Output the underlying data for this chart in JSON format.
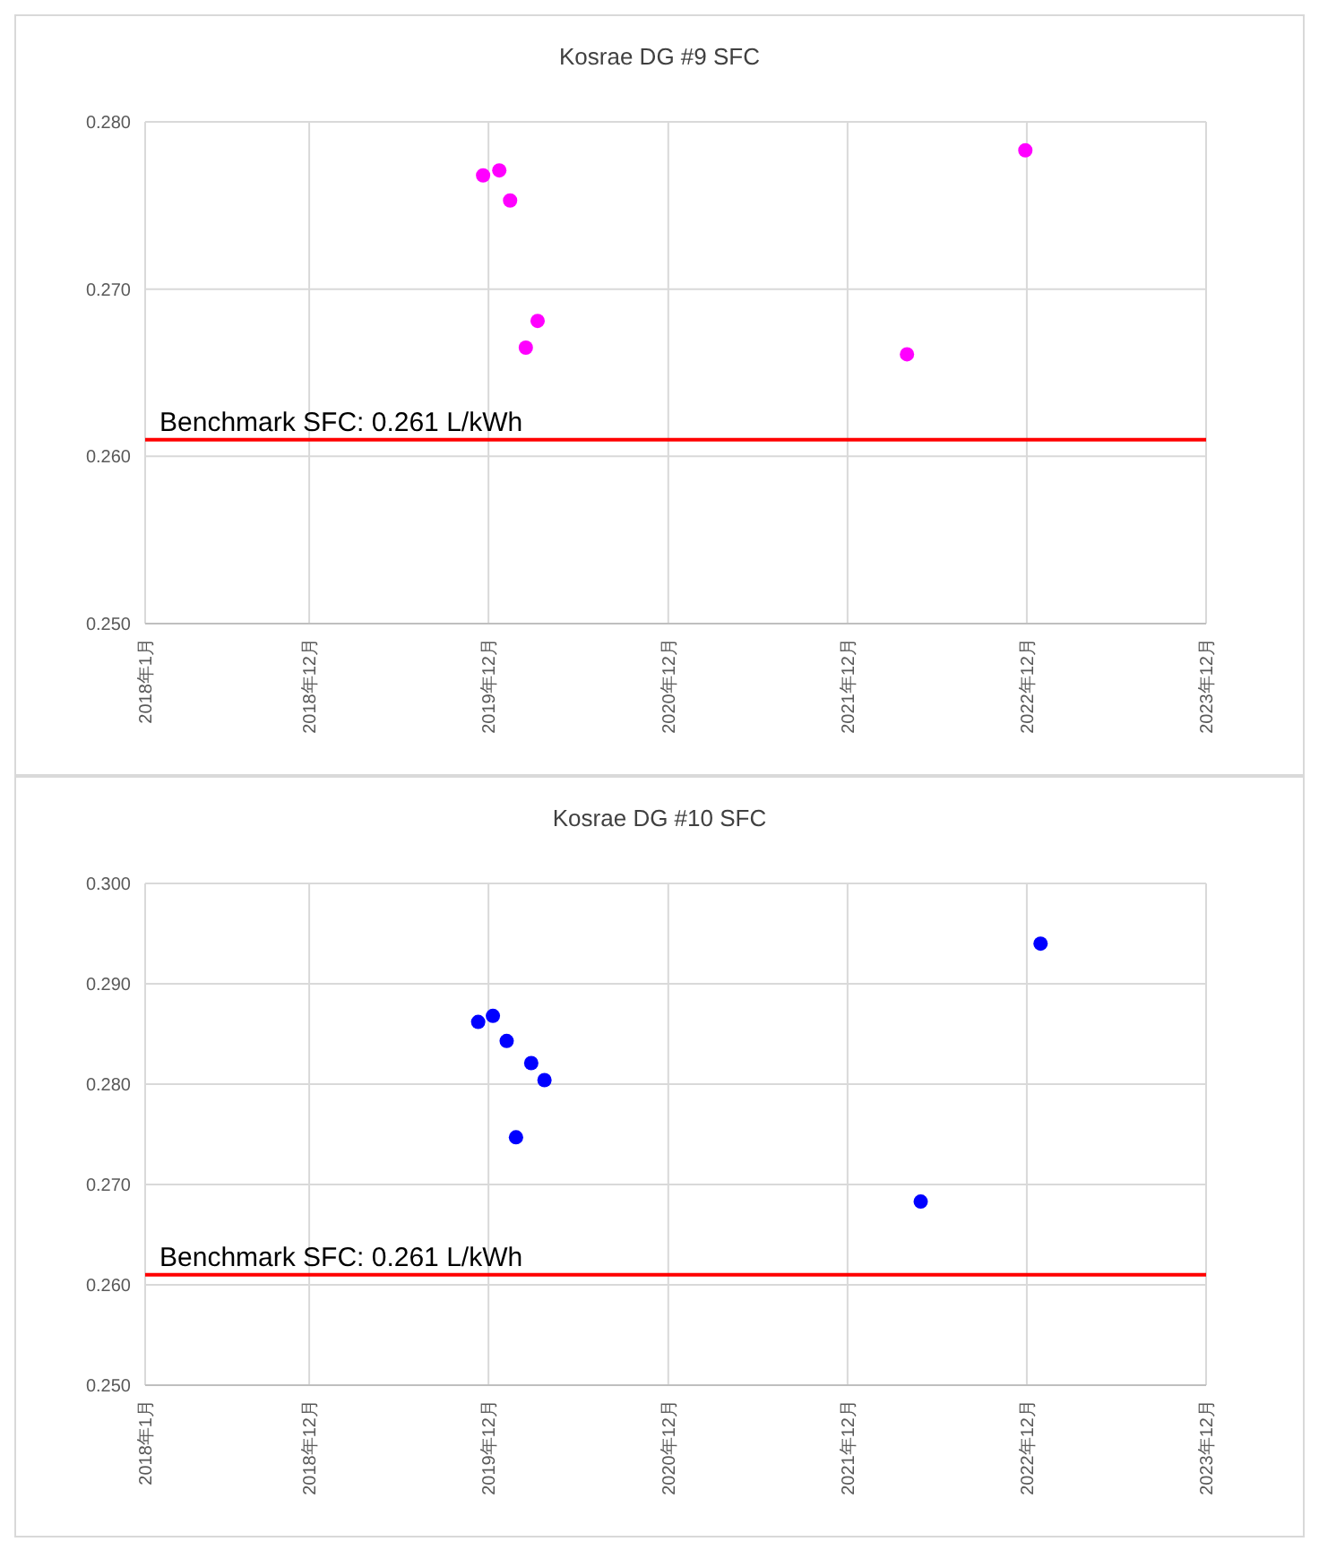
{
  "chart_data": [
    {
      "type": "scatter",
      "title": "Kosrae DG #9  SFC",
      "series": [
        {
          "color": "#ff00ff",
          "x": [
            "2019-11-20",
            "2019-12-23",
            "2020-01-14",
            "2020-02-15",
            "2020-03-10",
            "2022-04-01",
            "2022-11-28"
          ],
          "values": [
            0.2768,
            0.2771,
            0.2753,
            0.2665,
            0.2681,
            0.2661,
            0.2783
          ]
        }
      ],
      "xlim": [
        "2018-01",
        "2023-12"
      ],
      "xticks": [
        {
          "value": "2018-01",
          "label": "2018年1月"
        },
        {
          "value": "2018-12",
          "label": "2018年12月"
        },
        {
          "value": "2019-12",
          "label": "2019年12月"
        },
        {
          "value": "2020-12",
          "label": "2020年12月"
        },
        {
          "value": "2021-12",
          "label": "2021年12月"
        },
        {
          "value": "2022-12",
          "label": "2022年12月"
        },
        {
          "value": "2023-12",
          "label": "2023年12月"
        }
      ],
      "ylim": [
        0.25,
        0.28
      ],
      "yticks": [
        {
          "value": 0.25,
          "label": "0.250"
        },
        {
          "value": 0.26,
          "label": "0.260"
        },
        {
          "value": 0.27,
          "label": "0.270"
        },
        {
          "value": 0.28,
          "label": "0.280"
        }
      ],
      "ref_lines": [
        {
          "axis": "y",
          "value": 0.261,
          "label": "Benchmark SFC: 0.261 L/kWh",
          "color": "#ff0000"
        }
      ],
      "grid": true,
      "marker": "circle"
    },
    {
      "type": "scatter",
      "title": "Kosrae DG #10  SFC",
      "series": [
        {
          "color": "#0000ff",
          "x": [
            "2019-11-10",
            "2019-12-10",
            "2020-01-07",
            "2020-02-26",
            "2020-03-24",
            "2020-01-26",
            "2022-04-29",
            "2022-12-29"
          ],
          "values": [
            0.2862,
            0.2868,
            0.2843,
            0.2821,
            0.2804,
            0.2747,
            0.2683,
            0.294
          ]
        }
      ],
      "xlim": [
        "2018-01",
        "2023-12"
      ],
      "xticks": [
        {
          "value": "2018-01",
          "label": "2018年1月"
        },
        {
          "value": "2018-12",
          "label": "2018年12月"
        },
        {
          "value": "2019-12",
          "label": "2019年12月"
        },
        {
          "value": "2020-12",
          "label": "2020年12月"
        },
        {
          "value": "2021-12",
          "label": "2021年12月"
        },
        {
          "value": "2022-12",
          "label": "2022年12月"
        },
        {
          "value": "2023-12",
          "label": "2023年12月"
        }
      ],
      "ylim": [
        0.25,
        0.3
      ],
      "yticks": [
        {
          "value": 0.25,
          "label": "0.250"
        },
        {
          "value": 0.26,
          "label": "0.260"
        },
        {
          "value": 0.27,
          "label": "0.270"
        },
        {
          "value": 0.28,
          "label": "0.280"
        },
        {
          "value": 0.29,
          "label": "0.290"
        },
        {
          "value": 0.3,
          "label": "0.300"
        }
      ],
      "ref_lines": [
        {
          "axis": "y",
          "value": 0.261,
          "label": "Benchmark SFC: 0.261 L/kWh",
          "color": "#ff0000"
        }
      ],
      "grid": true,
      "marker": "circle"
    }
  ]
}
